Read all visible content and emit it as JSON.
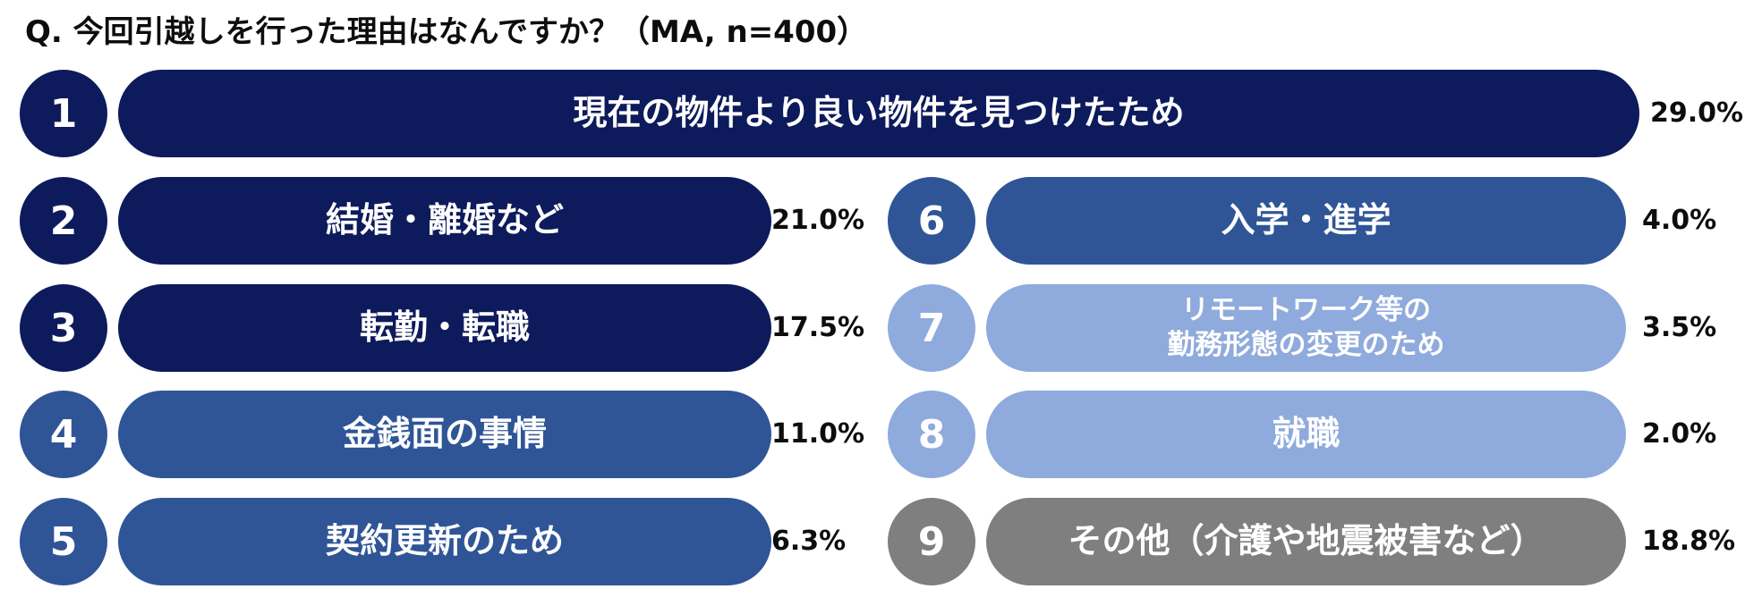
{
  "question": "Q. 今回引越しを行った理由はなんですか？（MA, n=400）",
  "colors": {
    "navy": "#0d1b5c",
    "blue": "#2f5597",
    "light": "#8faadc",
    "gray": "#7f7f7f"
  },
  "chart_data": {
    "type": "bar",
    "title": "Q. 今回引越しを行った理由はなんですか？（MA, n=400）",
    "categories": [
      "現在の物件より良い物件を見つけたため",
      "結婚・離婚など",
      "転勤・転職",
      "金銭面の事情",
      "契約更新のため",
      "入学・進学",
      "リモートワーク等の勤務形態の変更のため",
      "就職",
      "その他（介護や地震被害など）"
    ],
    "values": [
      29.0,
      21.0,
      17.5,
      11.0,
      6.3,
      4.0,
      3.5,
      2.0,
      18.8
    ],
    "unit": "%"
  },
  "items": [
    {
      "rank": "1",
      "label": "現在の物件より良い物件を見つけたため",
      "label_lines": [
        "現在の物件より良い物件を見つけたため"
      ],
      "pct": "29.0%",
      "color": "#0d1b5c"
    },
    {
      "rank": "2",
      "label": "結婚・離婚など",
      "label_lines": [
        "結婚・離婚など"
      ],
      "pct": "21.0%",
      "color": "#0d1b5c"
    },
    {
      "rank": "3",
      "label": "転勤・転職",
      "label_lines": [
        "転勤・転職"
      ],
      "pct": "17.5%",
      "color": "#0d1b5c"
    },
    {
      "rank": "4",
      "label": "金銭面の事情",
      "label_lines": [
        "金銭面の事情"
      ],
      "pct": "11.0%",
      "color": "#2f5597"
    },
    {
      "rank": "5",
      "label": "契約更新のため",
      "label_lines": [
        "契約更新のため"
      ],
      "pct": "6.3%",
      "color": "#2f5597"
    },
    {
      "rank": "6",
      "label": "入学・進学",
      "label_lines": [
        "入学・進学"
      ],
      "pct": "4.0%",
      "color": "#2f5597"
    },
    {
      "rank": "7",
      "label": "リモートワーク等の勤務形態の変更のため",
      "label_lines": [
        "リモートワーク等の",
        "勤務形態の変更のため"
      ],
      "pct": "3.5%",
      "color": "#8faadc"
    },
    {
      "rank": "8",
      "label": "就職",
      "label_lines": [
        "就職"
      ],
      "pct": "2.0%",
      "color": "#8faadc"
    },
    {
      "rank": "9",
      "label": "その他（介護や地震被害など）",
      "label_lines": [
        "その他（介護や地震被害など）"
      ],
      "pct": "18.8%",
      "color": "#7f7f7f"
    }
  ]
}
